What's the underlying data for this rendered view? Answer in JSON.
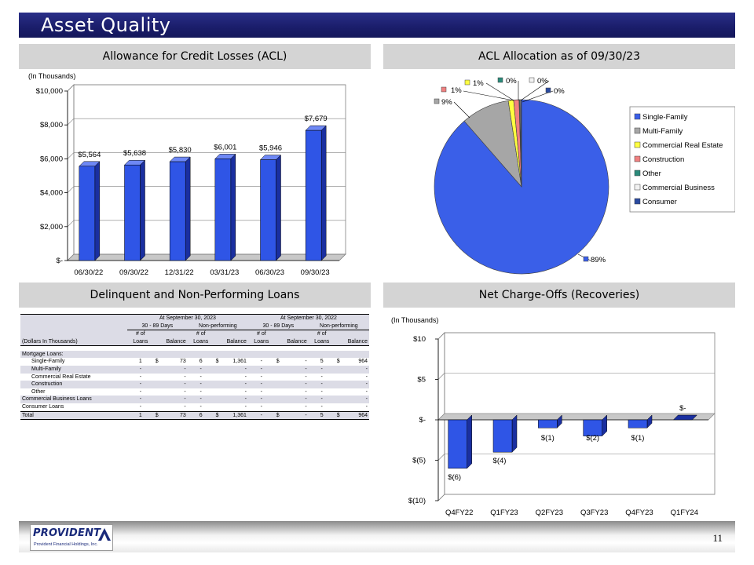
{
  "title": "Asset Quality",
  "page_number": "11",
  "logo": {
    "name": "PROVIDENT",
    "subtitle": "Provident Financial Holdings, Inc."
  },
  "sections": {
    "acl": "Allowance for Credit Losses (ACL)",
    "allocation": "ACL Allocation as of 09/30/23",
    "delinquent": "Delinquent and Non-Performing Loans",
    "chargeoffs": "Net Charge-Offs (Recoveries)"
  },
  "chart_data": [
    {
      "type": "bar",
      "note": "(In Thousands)",
      "categories": [
        "06/30/22",
        "09/30/22",
        "12/31/22",
        "03/31/23",
        "06/30/23",
        "09/30/23"
      ],
      "values": [
        5564,
        5638,
        5830,
        6001,
        5946,
        7679
      ],
      "data_labels": [
        "$5,564",
        "$5,638",
        "$5,830",
        "$6,001",
        "$5,946",
        "$7,679"
      ],
      "yticks": [
        "$-",
        "$2,000",
        "$4,000",
        "$6,000",
        "$8,000",
        "$10,000"
      ],
      "ylim": [
        0,
        10000
      ],
      "grid": true,
      "color": "#2f55e6"
    },
    {
      "type": "pie",
      "slices": [
        {
          "name": "Single-Family",
          "value": 89,
          "label": "89%",
          "color": "#3a5fe8"
        },
        {
          "name": "Multi-Family",
          "value": 9,
          "label": "9%",
          "color": "#a6a6a6"
        },
        {
          "name": "Commercial Real Estate",
          "value": 1,
          "label": "1%",
          "color": "#ffff40"
        },
        {
          "name": "Construction",
          "value": 1,
          "label": "1%",
          "color": "#f08080"
        },
        {
          "name": "Other",
          "value": 0.15,
          "label": "0%",
          "color": "#2a8a7a"
        },
        {
          "name": "Commercial Business",
          "value": 0.15,
          "label": "0%",
          "color": "#f2f2f2"
        },
        {
          "name": "Consumer",
          "value": 0.15,
          "label": "0%",
          "color": "#2a4aa0"
        }
      ],
      "legend_position": "right"
    },
    {
      "type": "bar",
      "note": "(In Thousands)",
      "categories": [
        "Q4FY22",
        "Q1FY23",
        "Q2FY23",
        "Q3FY23",
        "Q4FY23",
        "Q1FY24"
      ],
      "values": [
        -6,
        -4,
        -1,
        -2,
        -1,
        0
      ],
      "data_labels": [
        "$(6)",
        "$(4)",
        "$(1)",
        "$(2)",
        "$(1)",
        "$-"
      ],
      "yticks": [
        "$(10)",
        "$(5)",
        "$-",
        "$5",
        "$10"
      ],
      "ylim": [
        -10,
        10
      ],
      "grid": true,
      "color": "#2f55e6"
    }
  ],
  "table": {
    "group1": "At September 30, 2023",
    "group2": "At September 30, 2022",
    "sub": [
      "30 - 89 Days",
      "Non-performing",
      "30 - 89 Days",
      "Non-performing"
    ],
    "col_top": "# of",
    "col_loans": "Loans",
    "col_balance": "Balance",
    "dollars_label": "(Dollars In Thousands)",
    "mortgage_label": "Mortgage Loans:",
    "rows": [
      {
        "label": "Single-Family",
        "c": [
          "1",
          "$",
          "73",
          "6",
          "$",
          "1,361",
          "-",
          "$",
          "-",
          "5",
          "$",
          "964"
        ]
      },
      {
        "label": "Multi-Family",
        "c": [
          "-",
          "",
          "-",
          "-",
          "",
          "-",
          "-",
          "",
          "-",
          "-",
          "",
          "-"
        ]
      },
      {
        "label": "Commercial Real Estate",
        "c": [
          "-",
          "",
          "-",
          "-",
          "",
          "-",
          "-",
          "",
          "-",
          "-",
          "",
          "-"
        ]
      },
      {
        "label": "Construction",
        "c": [
          "-",
          "",
          "-",
          "-",
          "",
          "-",
          "-",
          "",
          "-",
          "-",
          "",
          "-"
        ]
      },
      {
        "label": "Other",
        "c": [
          "-",
          "",
          "-",
          "-",
          "",
          "-",
          "-",
          "",
          "-",
          "-",
          "",
          "-"
        ]
      },
      {
        "label": "Commercial Business Loans",
        "c": [
          "-",
          "",
          "-",
          "-",
          "",
          "-",
          "-",
          "",
          "-",
          "-",
          "",
          "-"
        ]
      },
      {
        "label": "Consumer Loans",
        "c": [
          "-",
          "",
          "-",
          "-",
          "",
          "-",
          "-",
          "",
          "-",
          "-",
          "",
          "-"
        ]
      },
      {
        "label": "Total",
        "c": [
          "1",
          "$",
          "73",
          "6",
          "$",
          "1,361",
          "-",
          "$",
          "-",
          "5",
          "$",
          "964"
        ]
      }
    ]
  }
}
